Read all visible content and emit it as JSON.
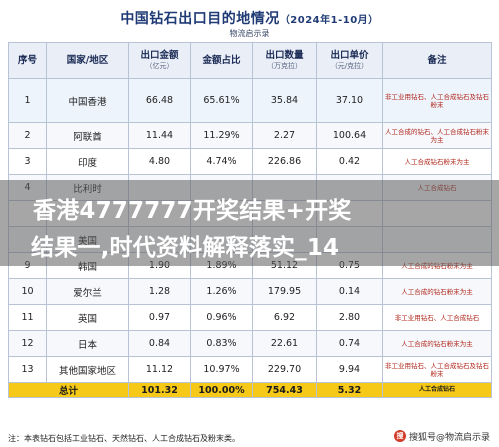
{
  "header": {
    "title": "中国钻石出口目的地情况",
    "title_sub": "（2024年1-10月）",
    "source": "物流启示录"
  },
  "table": {
    "columns": [
      {
        "label": "序号",
        "unit": ""
      },
      {
        "label": "国家/地区",
        "unit": ""
      },
      {
        "label": "出口金额",
        "unit": "（亿元）"
      },
      {
        "label": "金额占比",
        "unit": ""
      },
      {
        "label": "出口数量",
        "unit": "（万克拉）"
      },
      {
        "label": "出口单价",
        "unit": "（元/克拉）"
      },
      {
        "label": "备注",
        "unit": ""
      }
    ],
    "rows": [
      {
        "no": "1",
        "country": "中国香港",
        "amount": "66.48",
        "share": "65.61%",
        "qty": "35.84",
        "price": "37.10",
        "note": "非工业用钻石、人工合成钻石及钻石粉末"
      },
      {
        "no": "2",
        "country": "阿联酋",
        "amount": "11.44",
        "share": "11.29%",
        "qty": "2.27",
        "price": "100.64",
        "note": "人工合成的钻石、人工合成钻石粉末为主"
      },
      {
        "no": "3",
        "country": "印度",
        "amount": "4.80",
        "share": "4.74%",
        "qty": "226.86",
        "price": "0.42",
        "note": "人工合成钻石粉末为主"
      },
      {
        "no": "4",
        "country": "比利时",
        "amount": "",
        "share": "",
        "qty": "",
        "price": "",
        "note": "人工合成钻石"
      },
      {
        "no": "",
        "country": "",
        "amount": "",
        "share": "",
        "qty": "",
        "price": "",
        "note": ""
      },
      {
        "no": "",
        "country": "美国",
        "amount": "",
        "share": "",
        "qty": "",
        "price": "",
        "note": ""
      },
      {
        "no": "9",
        "country": "韩国",
        "amount": "1.90",
        "share": "1.89%",
        "qty": "51.12",
        "price": "0.75",
        "note": "人工合成的钻石粉末为主"
      },
      {
        "no": "10",
        "country": "爱尔兰",
        "amount": "1.28",
        "share": "1.26%",
        "qty": "179.95",
        "price": "0.14",
        "note": "人工合成的钻石粉末为主"
      },
      {
        "no": "11",
        "country": "英国",
        "amount": "0.97",
        "share": "0.96%",
        "qty": "6.92",
        "price": "2.80",
        "note": "非工业用钻石、人工合成钻石"
      },
      {
        "no": "12",
        "country": "日本",
        "amount": "0.84",
        "share": "0.83%",
        "qty": "22.61",
        "price": "0.74",
        "note": "人工合成的钻石粉末为主"
      },
      {
        "no": "13",
        "country": "其他国家地区",
        "amount": "11.12",
        "share": "10.97%",
        "qty": "229.70",
        "price": "9.94",
        "note": "非工业用钻石、人工合成钻石及钻石粉末"
      }
    ],
    "total": {
      "label": "总计",
      "amount": "101.32",
      "share": "100.00%",
      "qty": "754.43",
      "price": "5.32",
      "note": "人工合成钻石"
    }
  },
  "banner": {
    "line1": "香港4777777开奖结果+开奖",
    "line2": "结果一,时代资料解释落实_14"
  },
  "footnote": "注：本表钻石包括工业钻石、天然钻石、人工合成钻石及粉末类。",
  "watermark": {
    "logo_text": "搜",
    "text": "搜狐号@物流启示录"
  },
  "colors": {
    "header_text": "#1f3a74",
    "total_row": "#f6c817",
    "note_text": "#b0261a",
    "banner": "rgba(92,92,92,0.55)"
  }
}
